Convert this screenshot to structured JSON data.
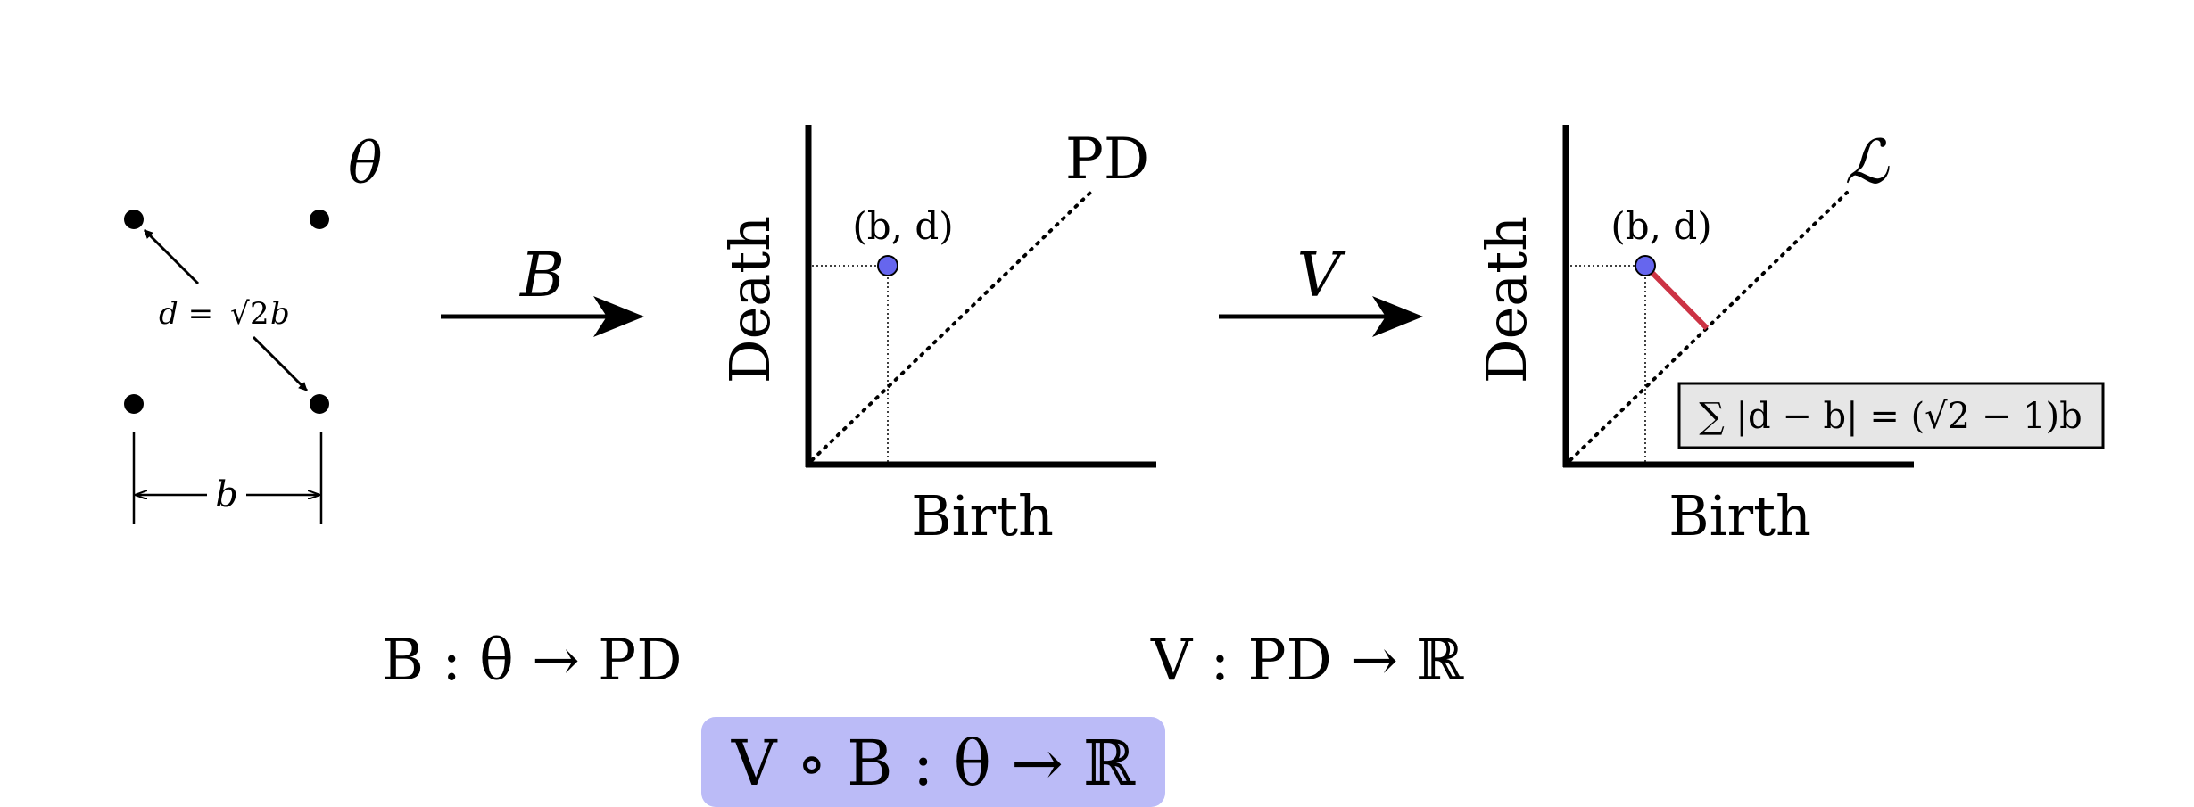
{
  "panel_points": {
    "theta": "θ",
    "distance_label_left": "d = ",
    "distance_label_root": "√",
    "distance_label_radicand": "2",
    "distance_label_right": "b",
    "width_label": "b"
  },
  "arrow_b": {
    "label": "B"
  },
  "panel_pd": {
    "corner_label": "PD",
    "point_label": "(b, d)",
    "ylabel": "Death",
    "xlabel": "Birth",
    "point_color": "#6666ee"
  },
  "arrow_v": {
    "label": "V"
  },
  "panel_l": {
    "corner_label": "ℒ",
    "point_label": "(b, d)",
    "ylabel": "Death",
    "xlabel": "Birth",
    "point_color": "#6666ee",
    "segment_color": "#cc3344",
    "formula_box": "∑ |d − b| = (√2 − 1)b"
  },
  "equations": {
    "b_map": "B : θ → PD",
    "v_map": "V : PD → ℝ",
    "composite": "V ∘ B : θ → ℝ",
    "composite_bg": "#bbbbf7"
  }
}
